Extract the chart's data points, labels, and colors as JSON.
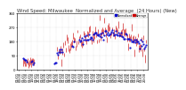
{
  "title": "Wind Speed: Milwaukee  Normalized and Average  (24 Hours) (New)",
  "background_color": "#ffffff",
  "grid_color": "#bbbbbb",
  "ylim": [
    360,
    0
  ],
  "yticks": [
    360,
    270,
    180,
    90,
    0
  ],
  "ytick_labels": [
    "0",
    "90",
    "180",
    "270",
    "360"
  ],
  "legend_labels": [
    "Normalized",
    "Average"
  ],
  "legend_colors": [
    "#0000dd",
    "#dd0000"
  ],
  "title_fontsize": 3.8,
  "tick_fontsize": 2.8,
  "seed": 42
}
